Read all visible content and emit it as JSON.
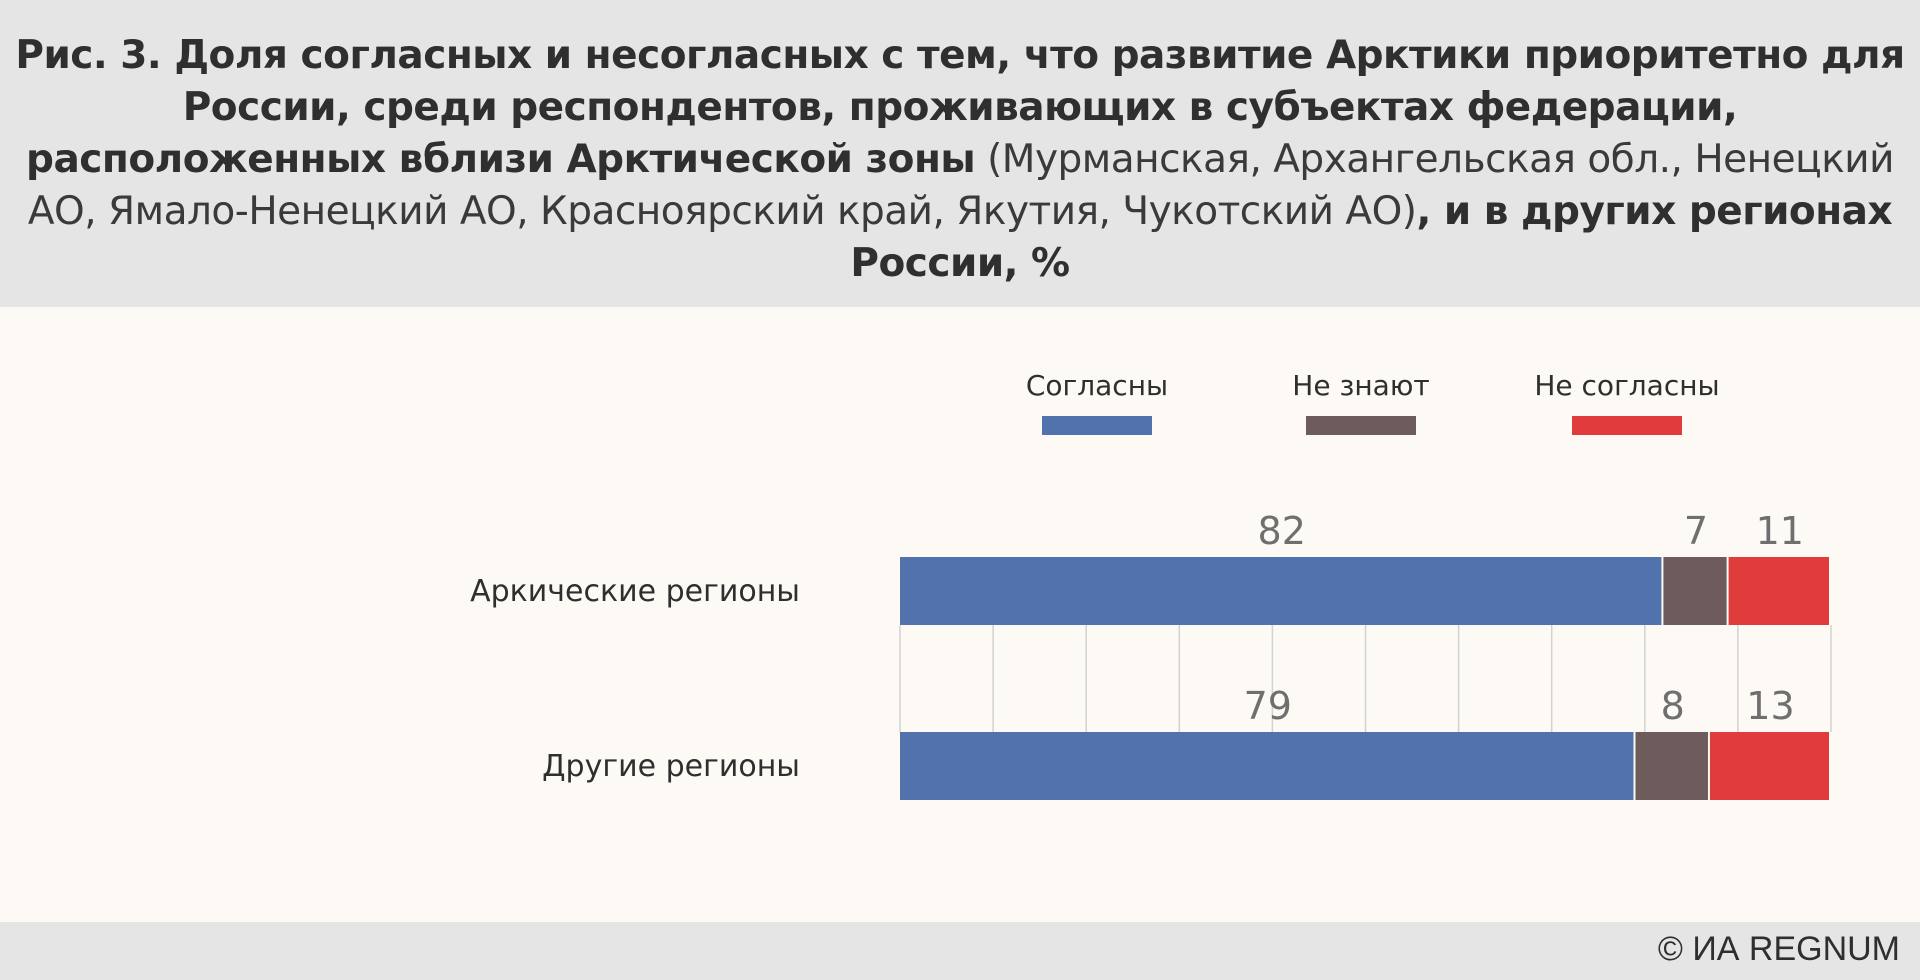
{
  "header": {
    "title_bold_1": "Рис. 3. Доля согласных и несогласных с тем, что развитие Арктики приоритетно для России, среди респондентов, проживающих в субъектах федерации, расположенных вблизи Арктической зоны",
    "title_normal": " (Мурманская, Архангельская обл., Ненецкий АО, Ямало-Ненецкий АО, Красноярский край, Якутия, Чукотский АО)",
    "title_bold_2": ", и в других регионах России, %"
  },
  "footer": {
    "credit": "© ИА REGNUM"
  },
  "chart_data": {
    "type": "bar",
    "orientation": "horizontal",
    "stacked": true,
    "categories": [
      "Аркические регионы",
      "Другие регионы"
    ],
    "series": [
      {
        "name": "Согласны",
        "color": "#5172ad",
        "values": [
          82,
          79
        ]
      },
      {
        "name": "Не знают",
        "color": "#6e5b5b",
        "values": [
          7,
          8
        ]
      },
      {
        "name": "Не согласны",
        "color": "#e03c3c",
        "values": [
          11,
          13
        ]
      }
    ],
    "xlim": [
      0,
      100
    ],
    "grid": true,
    "legend_position": "top"
  }
}
